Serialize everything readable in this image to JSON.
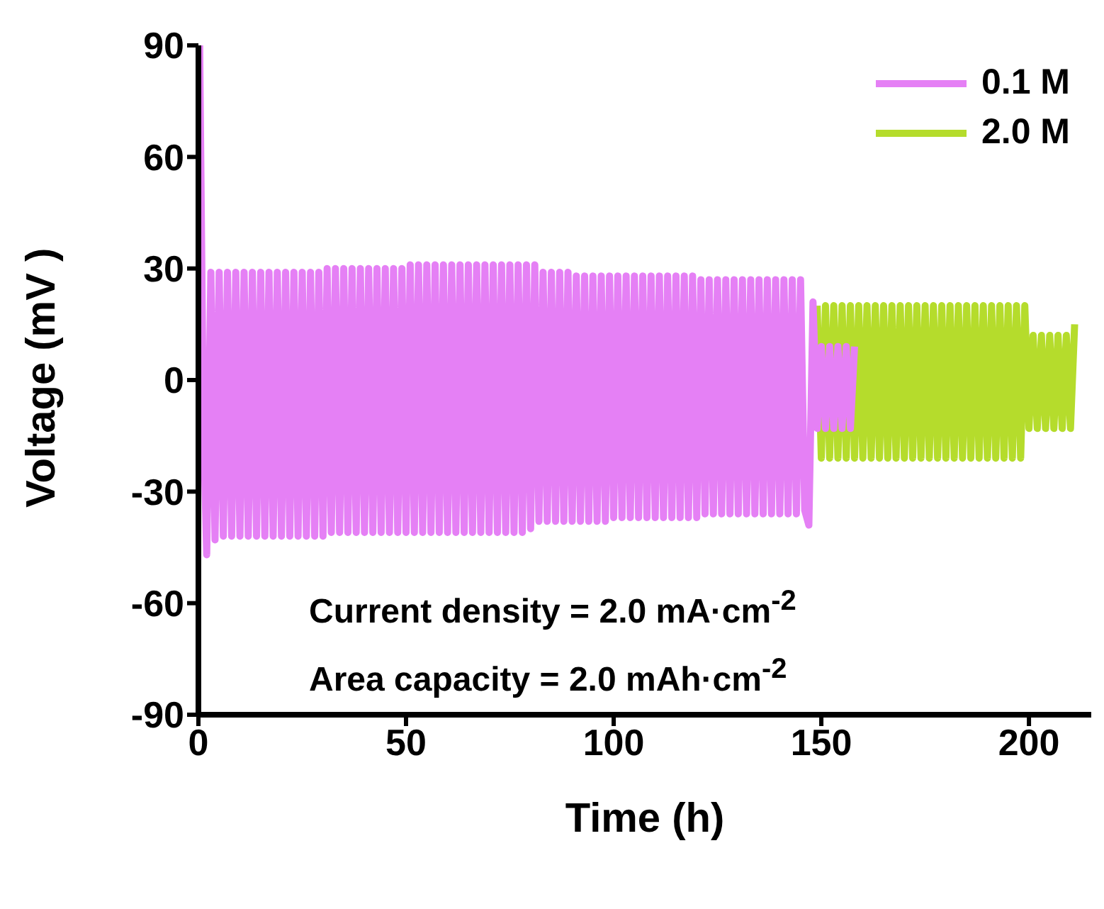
{
  "chart_data": {
    "type": "line",
    "xlabel": "Time (h)",
    "ylabel": "Voltage (mV )",
    "xlim": [
      0,
      215
    ],
    "xticks": [
      0,
      50,
      100,
      150,
      200
    ],
    "ylim": [
      -90,
      90
    ],
    "yticks": [
      -90,
      -60,
      -30,
      0,
      30,
      60,
      90
    ],
    "grid": false,
    "legend": "top right",
    "marker": "none",
    "line_style": "solid",
    "annotations": [
      "Current density = 2.0 mA·cm$^{-2}$",
      "Area capacity = 2.0 mAh·cm$^{-2}$"
    ],
    "series": [
      {
        "name": "0.1 M",
        "color": "#e580f5",
        "x": [
          0.3,
          1.2,
          2,
          3,
          4,
          5,
          6,
          7,
          8,
          9,
          10,
          11,
          12,
          13,
          14,
          15,
          16,
          17,
          18,
          19,
          20,
          21,
          22,
          23,
          24,
          25,
          26,
          27,
          28,
          29,
          30,
          31,
          32,
          33,
          34,
          35,
          36,
          37,
          38,
          39,
          40,
          41,
          42,
          43,
          44,
          45,
          46,
          47,
          48,
          49,
          50,
          51,
          52,
          53,
          54,
          55,
          56,
          57,
          58,
          59,
          60,
          61,
          62,
          63,
          64,
          65,
          66,
          67,
          68,
          69,
          70,
          71,
          72,
          73,
          74,
          75,
          76,
          77,
          78,
          79,
          80,
          81,
          82,
          83,
          84,
          85,
          86,
          87,
          88,
          89,
          90,
          91,
          92,
          93,
          94,
          95,
          96,
          97,
          98,
          99,
          100,
          101,
          102,
          103,
          104,
          105,
          106,
          107,
          108,
          109,
          110,
          111,
          112,
          113,
          114,
          115,
          116,
          117,
          118,
          119,
          120,
          121,
          122,
          123,
          124,
          125,
          126,
          127,
          128,
          129,
          130,
          131,
          132,
          133,
          134,
          135,
          136,
          137,
          138,
          139,
          140,
          141,
          142,
          143,
          144,
          145,
          146,
          147,
          148,
          149,
          150,
          151,
          152,
          153,
          154,
          155,
          156,
          157,
          158
        ],
        "values": [
          90,
          -12,
          -47,
          29,
          -43,
          29,
          -42,
          29,
          -42,
          29,
          -42,
          29,
          -42,
          29,
          -42,
          29,
          -42,
          29,
          -42,
          29,
          -42,
          29,
          -42,
          29,
          -42,
          29,
          -42,
          29,
          -42,
          29,
          -42,
          30,
          -41,
          30,
          -41,
          30,
          -41,
          30,
          -41,
          30,
          -41,
          30,
          -41,
          30,
          -41,
          30,
          -41,
          30,
          -41,
          30,
          -41,
          31,
          -41,
          31,
          -41,
          31,
          -41,
          31,
          -41,
          31,
          -41,
          31,
          -41,
          31,
          -41,
          31,
          -41,
          31,
          -41,
          31,
          -41,
          31,
          -41,
          31,
          -41,
          31,
          -41,
          31,
          -41,
          31,
          -40,
          31,
          -38,
          29,
          -38,
          29,
          -38,
          29,
          -38,
          29,
          -38,
          28,
          -38,
          28,
          -38,
          28,
          -38,
          28,
          -38,
          28,
          -37,
          28,
          -37,
          28,
          -37,
          28,
          -37,
          28,
          -37,
          28,
          -37,
          28,
          -37,
          28,
          -37,
          28,
          -37,
          28,
          -37,
          28,
          -37,
          27,
          -36,
          27,
          -36,
          27,
          -36,
          27,
          -36,
          27,
          -36,
          27,
          -36,
          27,
          -36,
          27,
          -36,
          27,
          -36,
          27,
          -36,
          27,
          -36,
          27,
          -36,
          27,
          -35,
          -39,
          21,
          -13,
          9,
          -13,
          9,
          -13,
          9,
          -13,
          9,
          -13,
          9
        ]
      },
      {
        "name": "2.0 M",
        "color": "#b5dc2c",
        "x": [
          149,
          150,
          151,
          152,
          153,
          154,
          155,
          156,
          157,
          158,
          159,
          160,
          161,
          162,
          163,
          164,
          165,
          166,
          167,
          168,
          169,
          170,
          171,
          172,
          173,
          174,
          175,
          176,
          177,
          178,
          179,
          180,
          181,
          182,
          183,
          184,
          185,
          186,
          187,
          188,
          189,
          190,
          191,
          192,
          193,
          194,
          195,
          196,
          197,
          198,
          199,
          200,
          201,
          202,
          203,
          204,
          205,
          206,
          207,
          208,
          209,
          210,
          211
        ],
        "values": [
          20,
          -21,
          20,
          -21,
          20,
          -21,
          20,
          -21,
          20,
          -21,
          20,
          -21,
          20,
          -21,
          20,
          -21,
          20,
          -21,
          20,
          -21,
          20,
          -21,
          20,
          -21,
          20,
          -21,
          20,
          -21,
          20,
          -21,
          20,
          -21,
          20,
          -21,
          20,
          -21,
          20,
          -21,
          20,
          -21,
          20,
          -21,
          20,
          -21,
          20,
          -21,
          20,
          -21,
          20,
          -21,
          20,
          -13,
          12,
          -13,
          12,
          -13,
          12,
          -13,
          12,
          -13,
          12,
          -13,
          15
        ]
      }
    ]
  }
}
